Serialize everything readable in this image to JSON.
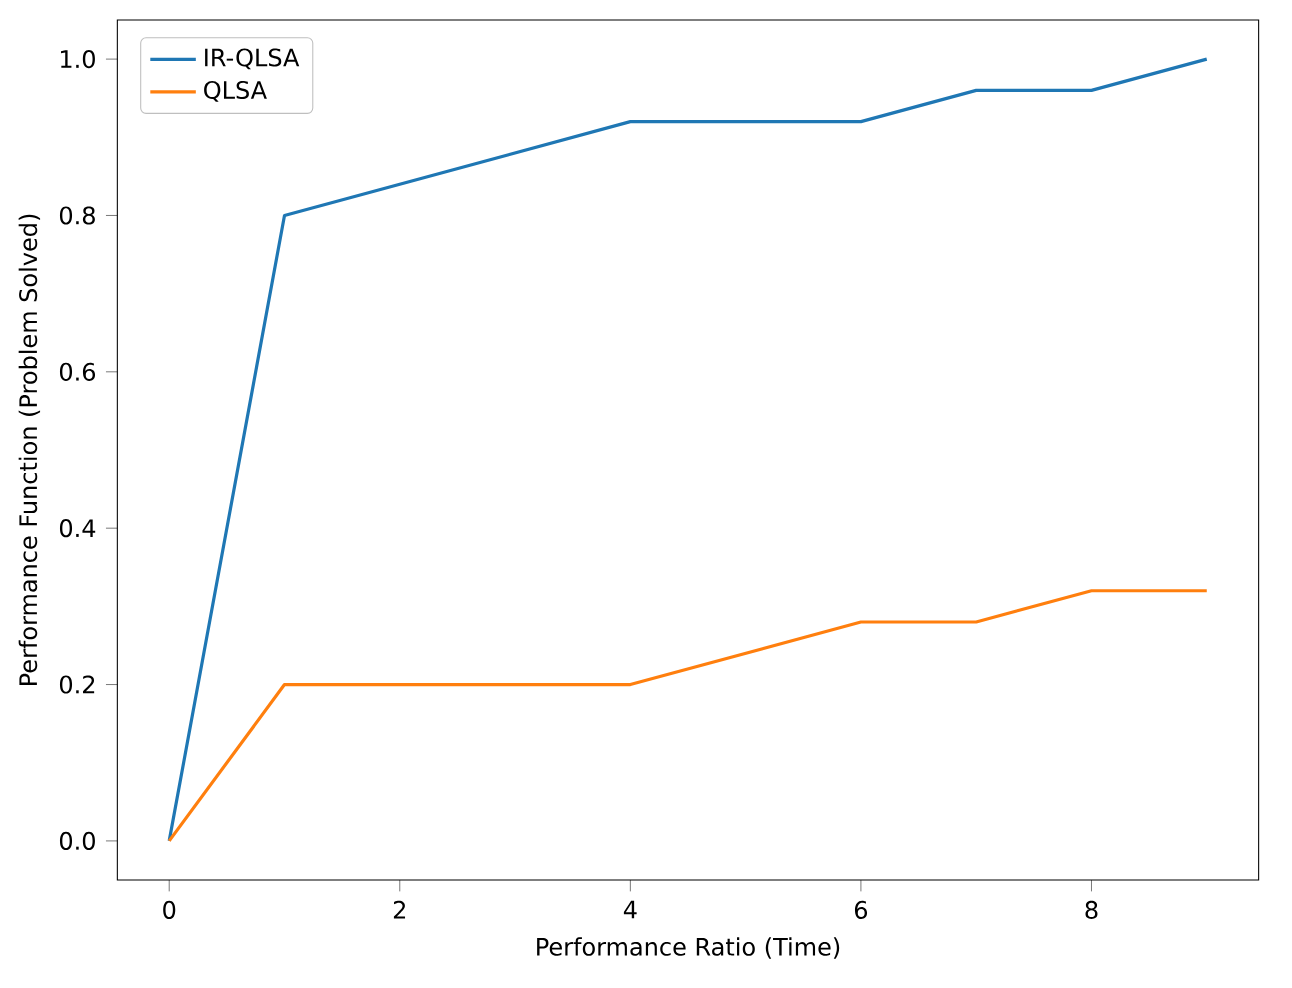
{
  "chart_data": {
    "type": "line",
    "xlabel": "Performance Ratio (Time)",
    "ylabel": "Performance Function (Problem Solved)",
    "x": [
      0,
      1,
      2,
      3,
      4,
      5,
      6,
      7,
      8,
      9
    ],
    "series": [
      {
        "name": "IR-QLSA",
        "color": "#1f77b4",
        "values": [
          0,
          0.8,
          0.84,
          0.88,
          0.92,
          0.92,
          0.92,
          0.96,
          0.96,
          1.0
        ]
      },
      {
        "name": "QLSA",
        "color": "#ff7f0e",
        "values": [
          0,
          0.2,
          0.2,
          0.2,
          0.2,
          0.24,
          0.28,
          0.28,
          0.32,
          0.32
        ]
      }
    ],
    "xlim": [
      -0.45,
      9.45
    ],
    "ylim": [
      -0.05,
      1.05
    ],
    "xticks": [
      0,
      2,
      4,
      6,
      8
    ],
    "yticks": [
      {
        "value": 0,
        "label": "0.0"
      },
      0.2,
      0.4,
      0.6,
      0.8,
      {
        "value": 1,
        "label": "1.0"
      }
    ],
    "legend": "top left",
    "grid": false,
    "marker": "none",
    "line_style": "solid"
  }
}
